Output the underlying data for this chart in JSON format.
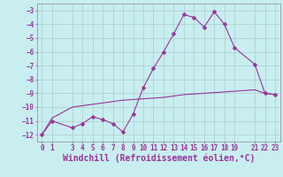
{
  "xlabel": "Windchill (Refroidissement éolien,°C)",
  "bg_color": "#c8eef0",
  "grid_color": "#aacccc",
  "line_color": "#993399",
  "xlim": [
    -0.5,
    23.5
  ],
  "ylim": [
    -12.5,
    -2.5
  ],
  "yticks": [
    -12,
    -11,
    -10,
    -9,
    -8,
    -7,
    -6,
    -5,
    -4,
    -3
  ],
  "xticks": [
    0,
    1,
    3,
    4,
    5,
    6,
    7,
    8,
    9,
    10,
    11,
    12,
    13,
    14,
    15,
    16,
    17,
    18,
    19,
    21,
    22,
    23
  ],
  "data1_x": [
    0,
    1,
    3,
    4,
    5,
    6,
    7,
    8,
    9,
    10,
    11,
    12,
    13,
    14,
    15,
    16,
    17,
    18,
    19,
    21,
    22,
    23
  ],
  "data1_y": [
    -12.0,
    -11.0,
    -11.5,
    -11.2,
    -10.7,
    -10.9,
    -11.2,
    -11.8,
    -10.5,
    -8.6,
    -7.2,
    -6.0,
    -4.7,
    -3.3,
    -3.5,
    -4.2,
    -3.1,
    -4.0,
    -5.7,
    -6.9,
    -9.0,
    -9.1
  ],
  "data2_x": [
    0,
    1,
    3,
    4,
    5,
    6,
    7,
    8,
    9,
    10,
    11,
    12,
    13,
    14,
    15,
    16,
    17,
    18,
    19,
    21,
    22,
    23
  ],
  "data2_y": [
    -12.0,
    -10.8,
    -10.0,
    -9.9,
    -9.8,
    -9.7,
    -9.6,
    -9.5,
    -9.45,
    -9.4,
    -9.35,
    -9.3,
    -9.2,
    -9.1,
    -9.05,
    -9.0,
    -8.95,
    -8.9,
    -8.85,
    -8.75,
    -9.0,
    -9.1
  ],
  "markersize": 2.5,
  "linewidth": 0.8,
  "tick_fontsize": 5.5,
  "xlabel_fontsize": 7.0
}
